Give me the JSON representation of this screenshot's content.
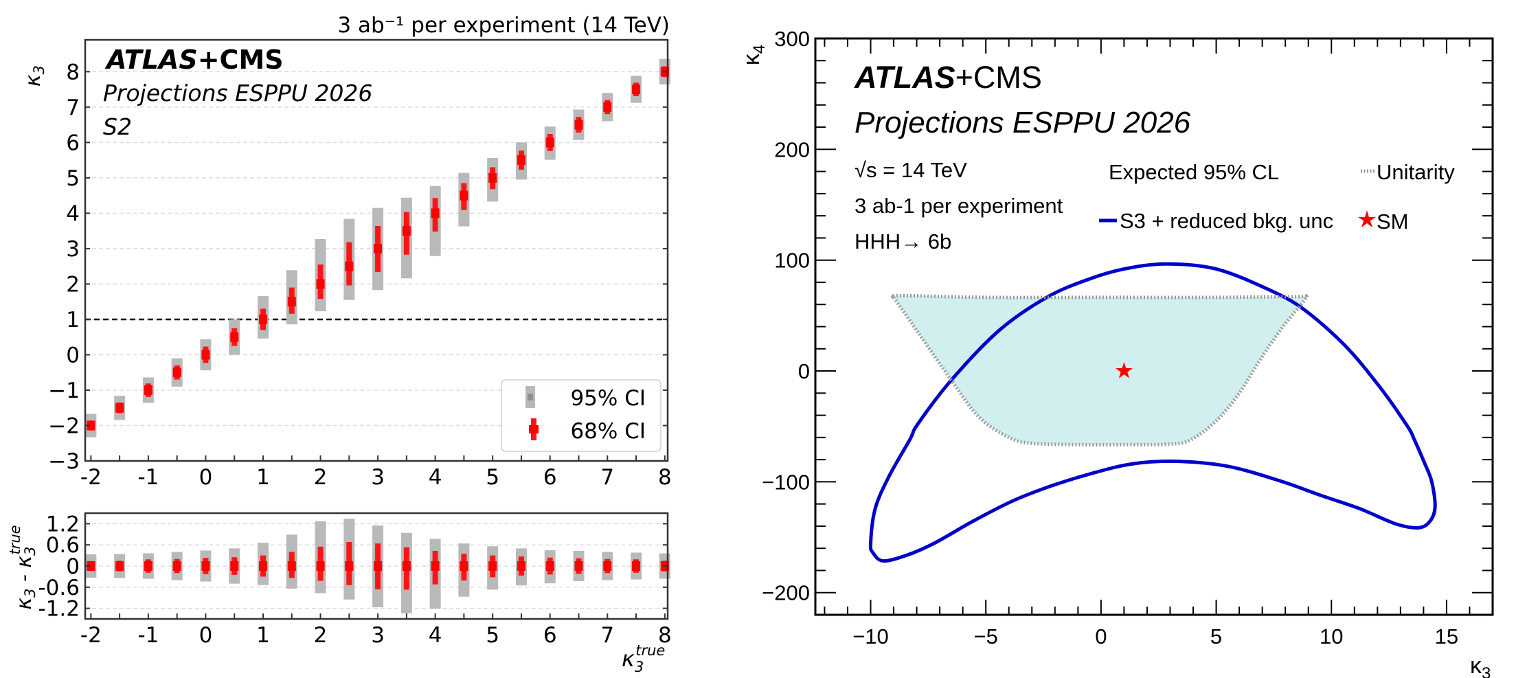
{
  "chart_data": [
    {
      "type": "scatter",
      "panel": "left-top",
      "title": "3 ab⁻¹ per experiment (14 TeV)",
      "annotations": [
        "ATLAS",
        "+CMS",
        "Projections ESPPU 2026",
        "S2"
      ],
      "xlabel": "",
      "ylabel": "κ3",
      "xlim": [
        -2.1,
        8.05
      ],
      "ylim": [
        -3,
        8.9
      ],
      "xticks": [
        -2,
        -1,
        0,
        1,
        2,
        3,
        4,
        5,
        6,
        7,
        8
      ],
      "xtick_labels": [
        "-2",
        "-1",
        "0",
        "1",
        "2",
        "3",
        "4",
        "5",
        "6",
        "7",
        "8"
      ],
      "yticks": [
        -3,
        -2,
        -1,
        0,
        1,
        2,
        3,
        4,
        5,
        6,
        7,
        8
      ],
      "ytick_labels": [
        "−3",
        "−2",
        "−1",
        "0",
        "1",
        "2",
        "3",
        "4",
        "5",
        "6",
        "7",
        "8"
      ],
      "grid": "horizontal-dashed",
      "reference_line": {
        "y": 1,
        "style": "dashed"
      },
      "legend": {
        "position": "bottom-right",
        "entries": [
          "95% CI",
          "68% CI"
        ]
      },
      "x": [
        -2,
        -1.5,
        -1,
        -0.5,
        0,
        0.5,
        1,
        1.5,
        2,
        2.5,
        3,
        3.5,
        4,
        4.5,
        5,
        5.5,
        6,
        6.5,
        7,
        7.5,
        8
      ],
      "central": [
        -2,
        -1.5,
        -1,
        -0.5,
        0,
        0.5,
        1,
        1.5,
        2,
        2.5,
        3,
        3.5,
        4,
        4.5,
        5,
        5.5,
        6,
        6.5,
        7,
        7.5,
        8
      ],
      "ci95_low": [
        -2.33,
        -1.84,
        -1.36,
        -0.9,
        -0.44,
        0.0,
        0.46,
        0.86,
        1.23,
        1.55,
        1.83,
        2.16,
        2.79,
        3.63,
        4.33,
        4.95,
        5.51,
        6.07,
        6.6,
        7.12,
        7.64
      ],
      "ci95_high": [
        -1.67,
        -1.16,
        -0.64,
        -0.1,
        0.44,
        1.0,
        1.66,
        2.39,
        3.27,
        3.84,
        4.15,
        4.44,
        4.77,
        5.14,
        5.56,
        6.0,
        6.45,
        6.93,
        7.4,
        7.88,
        8.36
      ],
      "ci68_low": [
        -2.14,
        -1.65,
        -1.19,
        -0.7,
        -0.23,
        0.25,
        0.7,
        1.16,
        1.58,
        1.96,
        2.34,
        2.83,
        3.48,
        4.09,
        4.68,
        5.23,
        5.76,
        6.28,
        6.8,
        7.31,
        7.85
      ],
      "ci68_high": [
        -1.86,
        -1.35,
        -0.81,
        -0.3,
        0.23,
        0.75,
        1.3,
        1.9,
        2.55,
        3.18,
        3.64,
        4.03,
        4.43,
        4.85,
        5.3,
        5.77,
        6.24,
        6.72,
        7.2,
        7.69,
        8.15
      ]
    },
    {
      "type": "scatter",
      "panel": "left-bottom",
      "xlabel": "κ3 true",
      "ylabel": "κ3 - κ3 true",
      "xlim": [
        -2.1,
        8.05
      ],
      "ylim": [
        -1.5,
        1.5
      ],
      "xticks": [
        -2,
        -1,
        0,
        1,
        2,
        3,
        4,
        5,
        6,
        7,
        8
      ],
      "xtick_labels": [
        "-2",
        "-1",
        "0",
        "1",
        "2",
        "3",
        "4",
        "5",
        "6",
        "7",
        "8"
      ],
      "yticks": [
        1.2,
        0.6,
        0,
        -0.6,
        -1.2
      ],
      "ytick_labels": [
        "1.2",
        "0.6",
        "0",
        "-0.6",
        "-1.2"
      ],
      "grid": "horizontal-dashed",
      "x": [
        -2,
        -1.5,
        -1,
        -0.5,
        0,
        0.5,
        1,
        1.5,
        2,
        2.5,
        3,
        3.5,
        4,
        4.5,
        5,
        5.5,
        6,
        6.5,
        7,
        7.5,
        8
      ],
      "central": [
        0,
        0,
        0,
        0,
        0,
        0,
        0,
        0,
        0,
        0,
        0,
        0,
        0,
        0,
        0,
        0,
        0,
        0,
        0,
        0,
        0
      ],
      "ci95_low": [
        -0.33,
        -0.34,
        -0.36,
        -0.4,
        -0.44,
        -0.5,
        -0.54,
        -0.64,
        -0.77,
        -0.95,
        -1.17,
        -1.34,
        -1.21,
        -0.87,
        -0.67,
        -0.55,
        -0.49,
        -0.43,
        -0.4,
        -0.38,
        -0.36
      ],
      "ci95_high": [
        0.33,
        0.34,
        0.36,
        0.4,
        0.44,
        0.5,
        0.66,
        0.89,
        1.27,
        1.34,
        1.15,
        0.94,
        0.77,
        0.64,
        0.56,
        0.5,
        0.45,
        0.43,
        0.4,
        0.38,
        0.36
      ],
      "ci68_low": [
        -0.14,
        -0.15,
        -0.19,
        -0.2,
        -0.23,
        -0.25,
        -0.3,
        -0.34,
        -0.42,
        -0.54,
        -0.66,
        -0.67,
        -0.52,
        -0.41,
        -0.32,
        -0.27,
        -0.24,
        -0.22,
        -0.2,
        -0.19,
        -0.15
      ],
      "ci68_high": [
        0.14,
        0.15,
        0.19,
        0.2,
        0.23,
        0.25,
        0.3,
        0.4,
        0.55,
        0.68,
        0.64,
        0.53,
        0.43,
        0.35,
        0.3,
        0.27,
        0.24,
        0.22,
        0.2,
        0.19,
        0.15
      ]
    },
    {
      "type": "line",
      "panel": "right",
      "annotations": [
        "ATLAS",
        "+CMS",
        "Projections ESPPU 2026",
        "√s = 14 TeV",
        "3 ab-1 per experiment",
        "HHH→ 6b",
        "Expected 95% CL"
      ],
      "xlabel": "κ3",
      "ylabel": "κ4",
      "xlim": [
        -12.4,
        17
      ],
      "ylim": [
        -220,
        300
      ],
      "xticks": [
        -10,
        -5,
        0,
        5,
        10,
        15
      ],
      "xtick_labels": [
        "−10",
        "−5",
        "0",
        "5",
        "10",
        "15"
      ],
      "yticks": [
        -200,
        -100,
        0,
        100,
        200,
        300
      ],
      "ytick_labels": [
        "−200",
        "−100",
        "0",
        "100",
        "200",
        "300"
      ],
      "grid": "off",
      "legend": {
        "position": "top-right",
        "entries": [
          "Unitarity",
          "S3 + reduced bkg. unc",
          "SM"
        ]
      },
      "series": [
        {
          "name": "S3 + reduced bkg. unc",
          "style": "solid",
          "color": "#0000cc",
          "points": [
            [
              2.83,
              96.6
            ],
            [
              5.0,
              92
            ],
            [
              7.3,
              73.2
            ],
            [
              8.8,
              55.6
            ],
            [
              10.6,
              22.7
            ],
            [
              12.1,
              -14.5
            ],
            [
              13.3,
              -49.8
            ],
            [
              13.6,
              -62
            ],
            [
              14.0,
              -81
            ],
            [
              14.35,
              -99.4
            ],
            [
              14.5,
              -122
            ],
            [
              14.3,
              -135
            ],
            [
              13.8,
              -141.4
            ],
            [
              12.8,
              -138
            ],
            [
              11.2,
              -124
            ],
            [
              9.5,
              -112
            ],
            [
              7.8,
              -99.4
            ],
            [
              5.5,
              -86
            ],
            [
              3.2,
              -81.5
            ],
            [
              1.3,
              -84
            ],
            [
              -0.5,
              -93
            ],
            [
              -2.2,
              -104
            ],
            [
              -3.86,
              -117.5
            ],
            [
              -5.6,
              -136
            ],
            [
              -7.2,
              -155
            ],
            [
              -8.4,
              -166
            ],
            [
              -9.45,
              -171.4
            ],
            [
              -9.9,
              -164
            ],
            [
              -10.0,
              -155.3
            ],
            [
              -9.8,
              -124
            ],
            [
              -9.2,
              -95
            ],
            [
              -8.3,
              -62
            ],
            [
              -7.95,
              -47.8
            ],
            [
              -6.5,
              -8.3
            ],
            [
              -4.4,
              37
            ],
            [
              -2.3,
              67
            ],
            [
              -0.5,
              83
            ],
            [
              1.0,
              92
            ]
          ]
        },
        {
          "name": "Unitarity",
          "style": "dotted",
          "color": "#999999",
          "fill": "#cfeeee",
          "points": [
            [
              -9.0,
              66.4
            ],
            [
              -7.95,
              35
            ],
            [
              -6.5,
              -8.3
            ],
            [
              -5.3,
              -41.5
            ],
            [
              -4.0,
              -60
            ],
            [
              -3.0,
              -65.3
            ],
            [
              -1.0,
              -66.5
            ],
            [
              1.0,
              -66.5
            ],
            [
              3.0,
              -66
            ],
            [
              3.9,
              -62
            ],
            [
              5.0,
              -45
            ],
            [
              6.0,
              -20
            ],
            [
              6.9,
              10
            ],
            [
              7.9,
              40
            ],
            [
              8.9,
              66
            ],
            [
              8.5,
              67
            ],
            [
              5.0,
              66.4
            ],
            [
              0,
              66.4
            ],
            [
              -5.0,
              66.4
            ],
            [
              -8.6,
              68
            ],
            [
              -9.0,
              66.4
            ]
          ]
        }
      ],
      "markers": [
        {
          "name": "SM",
          "x": 1,
          "y": 0,
          "marker": "star",
          "color": "#ff0000"
        }
      ]
    }
  ],
  "colors": {
    "ci95": "#b9b9b9",
    "ci68": "#ff1414",
    "contour": "#0000cc",
    "unitarity_line": "#999999",
    "unitarity_fill": "#cfeeee",
    "sm_star": "#ff0000"
  }
}
